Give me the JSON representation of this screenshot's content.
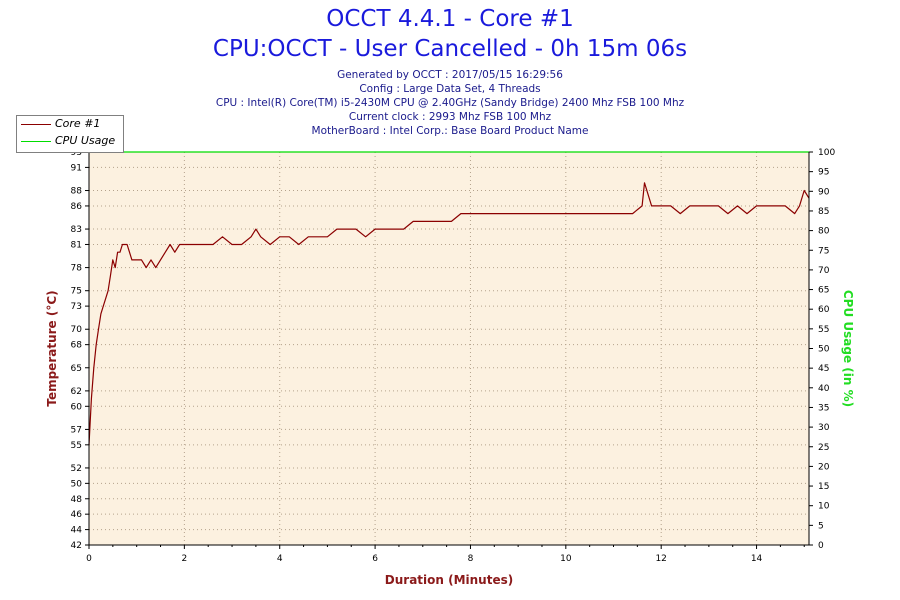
{
  "header": {
    "title_line1": "OCCT 4.4.1 - Core #1",
    "title_line2": "CPU:OCCT - User Cancelled - 0h 15m 06s",
    "info_lines": [
      "Generated by OCCT : 2017/05/15 16:29:56",
      "Config : Large Data Set, 4 Threads",
      "CPU : Intel(R) Core(TM) i5-2430M CPU @ 2.40GHz (Sandy Bridge) 2400 Mhz FSB 100 Mhz",
      "Current clock : 2993 Mhz FSB 100 Mhz",
      "MotherBoard : Intel Corp.: Base Board Product Name"
    ]
  },
  "colors": {
    "temperature_series": "#8b0000",
    "cpu_usage_series": "#00dd00",
    "plot_background": "#fcf1e0",
    "grid": "#b4a28c",
    "axis": "#000000",
    "temperature_axis_title": "#8b1a1a",
    "cpu_usage_axis_title": "#22dd22"
  },
  "chart_data": {
    "type": "line",
    "title": "OCCT 4.4.1 - Core #1",
    "subtitle": "CPU:OCCT - User Cancelled - 0h 15m 06s",
    "xlabel": "Duration (Minutes)",
    "ylabel_left": "Temperature (°C)",
    "ylabel_right": "CPU Usage (in %)",
    "xlim": [
      0,
      15.1
    ],
    "ylim_left": [
      42,
      93
    ],
    "ylim_right": [
      0,
      100
    ],
    "x_ticks": [
      "0",
      "2",
      "4",
      "6",
      "8",
      "10",
      "12",
      "14"
    ],
    "x_tick_values": [
      0,
      2,
      4,
      6,
      8,
      10,
      12,
      14
    ],
    "y_left_ticks": [
      "42",
      "44",
      "46",
      "48",
      "50",
      "52",
      "55",
      "57",
      "60",
      "62",
      "65",
      "68",
      "70",
      "73",
      "75",
      "78",
      "81",
      "83",
      "86",
      "88",
      "91",
      "93"
    ],
    "y_right_ticks": [
      "0",
      "5",
      "10",
      "15",
      "20",
      "25",
      "30",
      "35",
      "40",
      "45",
      "50",
      "55",
      "60",
      "65",
      "70",
      "75",
      "80",
      "85",
      "90",
      "95",
      "100"
    ],
    "grid": true,
    "legend_position": "top-left",
    "series": [
      {
        "name": "Core #1",
        "axis": "left",
        "x": [
          0,
          0.05,
          0.1,
          0.15,
          0.2,
          0.25,
          0.3,
          0.35,
          0.4,
          0.45,
          0.5,
          0.55,
          0.6,
          0.65,
          0.7,
          0.75,
          0.8,
          0.85,
          0.9,
          0.95,
          1.0,
          1.1,
          1.2,
          1.3,
          1.4,
          1.5,
          1.6,
          1.7,
          1.8,
          1.9,
          2.0,
          2.2,
          2.4,
          2.6,
          2.8,
          3.0,
          3.2,
          3.4,
          3.5,
          3.6,
          3.8,
          4.0,
          4.2,
          4.4,
          4.6,
          4.8,
          5.0,
          5.2,
          5.4,
          5.6,
          5.8,
          6.0,
          6.2,
          6.4,
          6.6,
          6.8,
          7.0,
          7.2,
          7.4,
          7.6,
          7.8,
          8.0,
          8.2,
          8.4,
          8.6,
          8.8,
          9.0,
          9.2,
          9.4,
          9.6,
          9.8,
          10.0,
          10.2,
          10.4,
          10.6,
          10.8,
          11.0,
          11.2,
          11.4,
          11.6,
          11.65,
          11.8,
          12.0,
          12.2,
          12.4,
          12.6,
          12.8,
          13.0,
          13.2,
          13.4,
          13.6,
          13.8,
          14.0,
          14.2,
          14.4,
          14.6,
          14.8,
          14.9,
          15.0,
          15.1
        ],
        "y": [
          55,
          61,
          65,
          68,
          70,
          72,
          73,
          74,
          75,
          77,
          79,
          78,
          80,
          80,
          81,
          81,
          81,
          80,
          79,
          79,
          79,
          79,
          78,
          79,
          78,
          79,
          80,
          81,
          80,
          81,
          81,
          81,
          81,
          81,
          82,
          81,
          81,
          82,
          83,
          82,
          81,
          82,
          82,
          81,
          82,
          82,
          82,
          83,
          83,
          83,
          82,
          83,
          83,
          83,
          83,
          84,
          84,
          84,
          84,
          84,
          85,
          85,
          85,
          85,
          85,
          85,
          85,
          85,
          85,
          85,
          85,
          85,
          85,
          85,
          85,
          85,
          85,
          85,
          85,
          86,
          89,
          86,
          86,
          86,
          85,
          86,
          86,
          86,
          86,
          85,
          86,
          85,
          86,
          86,
          86,
          86,
          85,
          86,
          88,
          87
        ]
      },
      {
        "name": "CPU Usage",
        "axis": "right",
        "x": [
          0,
          15.1
        ],
        "y": [
          100,
          100
        ]
      }
    ]
  }
}
